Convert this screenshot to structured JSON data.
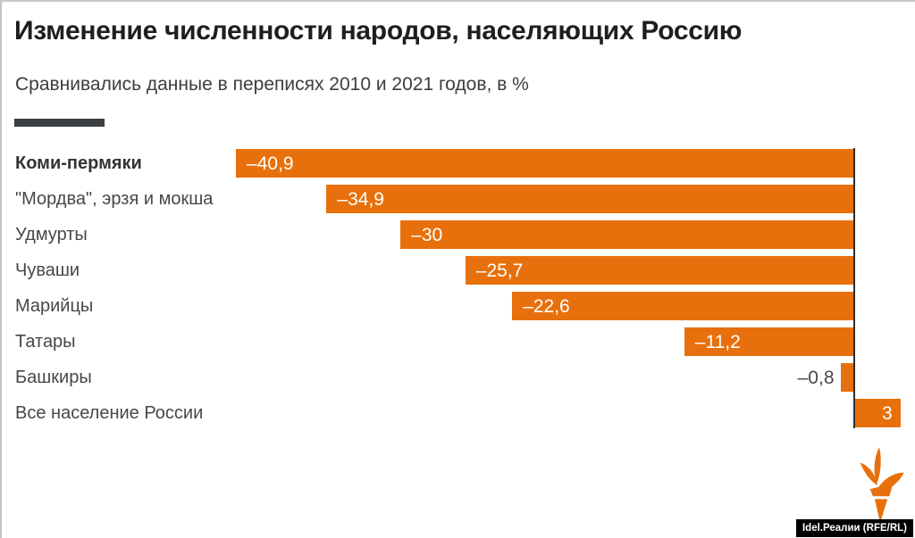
{
  "page": {
    "title": "Изменение численности народов, населяющих Россию",
    "subtitle": "Сравнивались данные в переписях 2010 и 2021 годов, в %",
    "credit": "Idel.Реалии (RFE/RL)"
  },
  "colors": {
    "bar_orange": "#e8700c",
    "title_text": "#1e1e1e",
    "body_text": "#474747",
    "legend_swatch": "#3d4043",
    "axis_line": "#2d2d2d",
    "value_text_inside": "#ffffff",
    "credit_bg": "#000000",
    "credit_text": "#ffffff"
  },
  "icons": {
    "logo": "rferl-torch-icon"
  },
  "chart_data": {
    "type": "bar",
    "orientation": "horizontal",
    "title": "Изменение численности народов, населяющих Россию",
    "subtitle": "Сравнивались данные в переписях 2010 и 2021 годов, в %",
    "categories": [
      "Коми-пермяки",
      "\"Мордва\", эрзя и мокша",
      "Удмурты",
      "Чуваши",
      "Марийцы",
      "Татары",
      "Башкиры",
      "Все население России"
    ],
    "values": [
      -40.9,
      -34.9,
      -30,
      -25.7,
      -22.6,
      -11.2,
      -0.8,
      3
    ],
    "value_labels": [
      "–40,9",
      "–34,9",
      "–30",
      "–25,7",
      "–22,6",
      "–11,2",
      "–0,8",
      "3"
    ],
    "xlim": [
      -41,
      3
    ],
    "baseline": 0,
    "grid": false,
    "legend_position": "none",
    "unit": "%"
  }
}
